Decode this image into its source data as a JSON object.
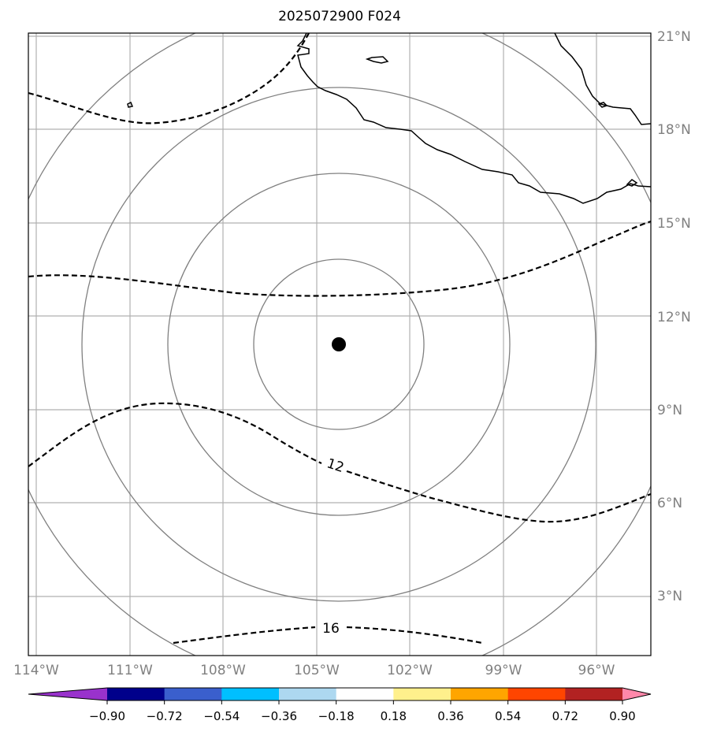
{
  "title": "2025072900 F024",
  "lon_ticks": [
    "114°W",
    "111°W",
    "108°W",
    "105°W",
    "102°W",
    "99°W",
    "96°W"
  ],
  "lat_ticks": [
    "21°N",
    "18°N",
    "15°N",
    "12°N",
    "9°N",
    "6°N",
    "3°N"
  ],
  "contours": {
    "style": "dashed",
    "labels": [
      "12",
      "16"
    ]
  },
  "range_rings": {
    "count": 4,
    "color": "#808080"
  },
  "storm_center": {
    "lon": -104.2,
    "lat": 11.1
  },
  "colorbar": {
    "extend": "both",
    "tick_labels": [
      "−0.90",
      "−0.72",
      "−0.54",
      "−0.36",
      "−0.18",
      "0.18",
      "0.36",
      "0.54",
      "0.72",
      "0.90"
    ],
    "colors": [
      "#9932cc",
      "#00008b",
      "#3a5fcd",
      "#00bfff",
      "#add8f0",
      "#ffffff",
      "#fff08c",
      "#ffa500",
      "#ff4500",
      "#b22222",
      "#ff88aa"
    ]
  },
  "gridline_color": "#b0b0b0",
  "coastline_color": "#000000"
}
